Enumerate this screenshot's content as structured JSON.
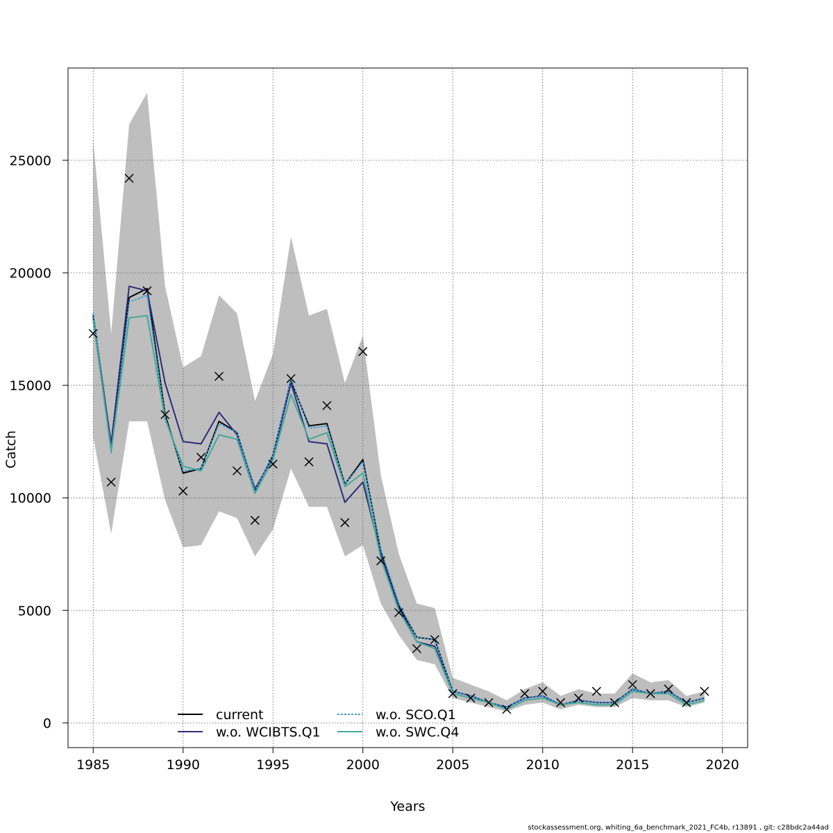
{
  "footer_text": "stockassessment.org, whiting_6a_benchmark_2021_FC4b, r13891 , git: c28bdc2a44ad",
  "chart_data": {
    "type": "line",
    "title": "",
    "xlabel": "Years",
    "ylabel": "Catch",
    "xlim": [
      1983.6,
      2021.4
    ],
    "ylim": [
      -1100,
      29100
    ],
    "xticks": [
      1985,
      1990,
      1995,
      2000,
      2005,
      2010,
      2015,
      2020
    ],
    "yticks": [
      0,
      5000,
      10000,
      15000,
      20000,
      25000
    ],
    "grid": true,
    "legend_position": "bottom-center",
    "x": [
      1985,
      1986,
      1987,
      1988,
      1989,
      1990,
      1991,
      1992,
      1993,
      1994,
      1995,
      1996,
      1997,
      1998,
      1999,
      2000,
      2001,
      2002,
      2003,
      2004,
      2005,
      2006,
      2007,
      2008,
      2009,
      2010,
      2011,
      2012,
      2013,
      2014,
      2015,
      2016,
      2017,
      2018,
      2019
    ],
    "band": {
      "color": "#bebebe",
      "upper": [
        25900,
        17300,
        26600,
        28000,
        19400,
        15800,
        16300,
        19000,
        18200,
        14300,
        16400,
        21600,
        18100,
        18400,
        15100,
        17200,
        11000,
        7500,
        5300,
        5100,
        2000,
        1700,
        1400,
        1000,
        1500,
        1800,
        1200,
        1500,
        1300,
        1300,
        2200,
        1800,
        1900,
        1200,
        1400
      ],
      "lower": [
        12700,
        8400,
        13400,
        13400,
        9900,
        7800,
        7900,
        9400,
        9100,
        7400,
        8600,
        11300,
        9600,
        9600,
        7400,
        7900,
        5300,
        3900,
        2800,
        2600,
        1100,
        900,
        700,
        500,
        800,
        900,
        600,
        800,
        700,
        700,
        1100,
        1000,
        1000,
        700,
        900
      ]
    },
    "series": [
      {
        "name": "current",
        "color": "#000000",
        "dashed": false,
        "width": 2,
        "values": [
          18100,
          12300,
          18900,
          19300,
          13700,
          11100,
          11300,
          13400,
          12900,
          10300,
          11900,
          15200,
          13200,
          13300,
          10600,
          11700,
          7600,
          5200,
          3800,
          3700,
          1400,
          1200,
          900,
          700,
          1100,
          1200,
          800,
          1000,
          900,
          900,
          1500,
          1300,
          1400,
          900,
          1100
        ]
      },
      {
        "name": "w.o. WCIBTS.Q1",
        "color": "#2e2a7a",
        "dashed": false,
        "width": 2,
        "values": [
          18000,
          12400,
          19400,
          19200,
          15100,
          12500,
          12400,
          13800,
          12800,
          10400,
          11800,
          15100,
          12500,
          12400,
          9800,
          10700,
          7500,
          5100,
          3600,
          3400,
          1400,
          1200,
          900,
          700,
          1100,
          1200,
          800,
          1000,
          900,
          900,
          1500,
          1300,
          1400,
          900,
          1100
        ]
      },
      {
        "name": "w.o. SCO.Q1",
        "color": "#3aa0d8",
        "dashed": true,
        "width": 2,
        "values": [
          18200,
          12000,
          18700,
          19000,
          13600,
          11200,
          11300,
          13300,
          12900,
          10300,
          11900,
          15300,
          13100,
          13200,
          10600,
          11600,
          7700,
          5300,
          3800,
          3700,
          1400,
          1200,
          900,
          700,
          1100,
          1200,
          800,
          1000,
          900,
          900,
          1500,
          1300,
          1400,
          900,
          1100
        ]
      },
      {
        "name": "w.o. SWC.Q4",
        "color": "#45a89a",
        "dashed": false,
        "width": 2,
        "values": [
          17900,
          12100,
          18000,
          18100,
          13500,
          11400,
          11200,
          12800,
          12600,
          10200,
          11700,
          14600,
          12600,
          12900,
          10500,
          11100,
          7300,
          5000,
          3600,
          3300,
          1300,
          1100,
          900,
          600,
          1000,
          1100,
          800,
          900,
          800,
          800,
          1400,
          1300,
          1300,
          800,
          1000
        ]
      }
    ],
    "observed": {
      "marker": "x",
      "values": [
        17300,
        10700,
        24200,
        19200,
        13700,
        10300,
        11800,
        15400,
        11200,
        9000,
        11500,
        15300,
        11600,
        14100,
        8900,
        16500,
        7200,
        4900,
        3300,
        3700,
        1300,
        1100,
        900,
        600,
        1300,
        1400,
        900,
        1100,
        1400,
        900,
        1700,
        1300,
        1500,
        900,
        1400
      ]
    }
  }
}
